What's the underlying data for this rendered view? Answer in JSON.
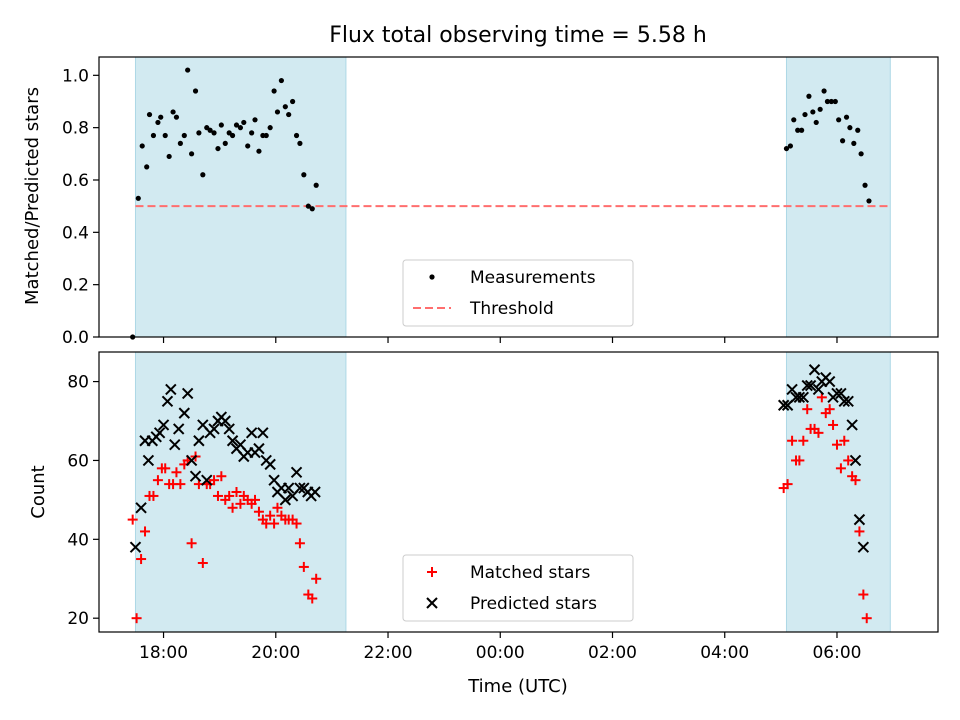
{
  "chart_data": {
    "title": "Flux total observing time = 5.58 h",
    "xlabel": "Time (UTC)",
    "x_unit": "hours since 00:00 UTC (negative = previous evening)",
    "xlim": [
      -7.15,
      7.8
    ],
    "xticks": [
      {
        "v": -6,
        "label": "18:00"
      },
      {
        "v": -4,
        "label": "20:00"
      },
      {
        "v": -2,
        "label": "22:00"
      },
      {
        "v": 0,
        "label": "00:00"
      },
      {
        "v": 2,
        "label": "02:00"
      },
      {
        "v": 4,
        "label": "04:00"
      },
      {
        "v": 6,
        "label": "06:00"
      }
    ],
    "shaded_intervals": [
      [
        -6.5,
        -2.75
      ],
      [
        5.1,
        6.95
      ]
    ],
    "shade_color": "#add8e6",
    "top": {
      "type": "scatter",
      "ylabel": "Matched/Predicted stars",
      "ylim": [
        0.0,
        1.07
      ],
      "yticks": [
        0.0,
        0.2,
        0.4,
        0.6,
        0.8,
        1.0
      ],
      "threshold": {
        "name": "Threshold",
        "value": 0.5,
        "color": "#ff6e6e"
      },
      "legend": [
        "Measurements",
        "Threshold"
      ],
      "legend_position": "bottom-center",
      "series": [
        {
          "name": "Measurements",
          "color": "#000000",
          "points": [
            [
              -6.55,
              0.0
            ],
            [
              -6.45,
              0.53
            ],
            [
              -6.38,
              0.73
            ],
            [
              -6.3,
              0.65
            ],
            [
              -6.25,
              0.85
            ],
            [
              -6.18,
              0.77
            ],
            [
              -6.1,
              0.82
            ],
            [
              -6.05,
              0.84
            ],
            [
              -5.97,
              0.77
            ],
            [
              -5.9,
              0.69
            ],
            [
              -5.83,
              0.86
            ],
            [
              -5.77,
              0.84
            ],
            [
              -5.7,
              0.74
            ],
            [
              -5.63,
              0.77
            ],
            [
              -5.57,
              1.02
            ],
            [
              -5.5,
              0.7
            ],
            [
              -5.43,
              0.94
            ],
            [
              -5.37,
              0.78
            ],
            [
              -5.3,
              0.62
            ],
            [
              -5.23,
              0.8
            ],
            [
              -5.17,
              0.79
            ],
            [
              -5.1,
              0.78
            ],
            [
              -5.03,
              0.72
            ],
            [
              -4.97,
              0.81
            ],
            [
              -4.9,
              0.74
            ],
            [
              -4.83,
              0.78
            ],
            [
              -4.77,
              0.77
            ],
            [
              -4.7,
              0.81
            ],
            [
              -4.63,
              0.8
            ],
            [
              -4.57,
              0.82
            ],
            [
              -4.5,
              0.73
            ],
            [
              -4.43,
              0.78
            ],
            [
              -4.37,
              0.83
            ],
            [
              -4.3,
              0.71
            ],
            [
              -4.23,
              0.77
            ],
            [
              -4.17,
              0.77
            ],
            [
              -4.1,
              0.8
            ],
            [
              -4.03,
              0.94
            ],
            [
              -3.97,
              0.86
            ],
            [
              -3.9,
              0.98
            ],
            [
              -3.83,
              0.88
            ],
            [
              -3.77,
              0.85
            ],
            [
              -3.7,
              0.9
            ],
            [
              -3.63,
              0.77
            ],
            [
              -3.57,
              0.74
            ],
            [
              -3.5,
              0.62
            ],
            [
              -3.42,
              0.5
            ],
            [
              -3.35,
              0.49
            ],
            [
              -3.28,
              0.58
            ],
            [
              5.1,
              0.72
            ],
            [
              5.17,
              0.73
            ],
            [
              5.23,
              0.83
            ],
            [
              5.3,
              0.79
            ],
            [
              5.37,
              0.79
            ],
            [
              5.43,
              0.85
            ],
            [
              5.5,
              0.92
            ],
            [
              5.57,
              0.86
            ],
            [
              5.63,
              0.82
            ],
            [
              5.7,
              0.87
            ],
            [
              5.77,
              0.94
            ],
            [
              5.83,
              0.9
            ],
            [
              5.9,
              0.9
            ],
            [
              5.97,
              0.9
            ],
            [
              6.03,
              0.83
            ],
            [
              6.1,
              0.75
            ],
            [
              6.17,
              0.84
            ],
            [
              6.23,
              0.8
            ],
            [
              6.3,
              0.74
            ],
            [
              6.37,
              0.79
            ],
            [
              6.43,
              0.7
            ],
            [
              6.5,
              0.58
            ],
            [
              6.57,
              0.52
            ]
          ]
        }
      ]
    },
    "bottom": {
      "type": "scatter",
      "ylabel": "Count",
      "ylim": [
        16.5,
        87.5
      ],
      "yticks": [
        20,
        40,
        60,
        80
      ],
      "legend": [
        "Matched stars",
        "Predicted stars"
      ],
      "legend_position": "bottom-center",
      "series": [
        {
          "name": "Matched stars",
          "marker": "plus",
          "color": "#ff0000",
          "points": [
            [
              -6.55,
              45
            ],
            [
              -6.48,
              20
            ],
            [
              -6.4,
              35
            ],
            [
              -6.33,
              42
            ],
            [
              -6.25,
              51
            ],
            [
              -6.18,
              51
            ],
            [
              -6.1,
              55
            ],
            [
              -6.03,
              58
            ],
            [
              -5.97,
              58
            ],
            [
              -5.9,
              54
            ],
            [
              -5.83,
              54
            ],
            [
              -5.77,
              57
            ],
            [
              -5.7,
              54
            ],
            [
              -5.63,
              59
            ],
            [
              -5.57,
              60
            ],
            [
              -5.5,
              39
            ],
            [
              -5.43,
              61
            ],
            [
              -5.37,
              54
            ],
            [
              -5.3,
              34
            ],
            [
              -5.23,
              54
            ],
            [
              -5.17,
              54
            ],
            [
              -5.1,
              55
            ],
            [
              -5.03,
              51
            ],
            [
              -4.97,
              56
            ],
            [
              -4.9,
              50
            ],
            [
              -4.83,
              51
            ],
            [
              -4.77,
              48
            ],
            [
              -4.7,
              52
            ],
            [
              -4.63,
              49
            ],
            [
              -4.57,
              51
            ],
            [
              -4.5,
              50
            ],
            [
              -4.43,
              49
            ],
            [
              -4.37,
              50
            ],
            [
              -4.3,
              47
            ],
            [
              -4.23,
              45
            ],
            [
              -4.17,
              44
            ],
            [
              -4.1,
              46
            ],
            [
              -4.03,
              44
            ],
            [
              -3.97,
              48
            ],
            [
              -3.9,
              46
            ],
            [
              -3.83,
              45
            ],
            [
              -3.77,
              45
            ],
            [
              -3.7,
              45
            ],
            [
              -3.63,
              44
            ],
            [
              -3.57,
              39
            ],
            [
              -3.5,
              33
            ],
            [
              -3.42,
              26
            ],
            [
              -3.35,
              25
            ],
            [
              -3.28,
              30
            ],
            [
              5.05,
              53
            ],
            [
              5.12,
              54
            ],
            [
              5.2,
              65
            ],
            [
              5.27,
              60
            ],
            [
              5.33,
              60
            ],
            [
              5.4,
              65
            ],
            [
              5.47,
              73
            ],
            [
              5.53,
              68
            ],
            [
              5.6,
              68
            ],
            [
              5.67,
              67
            ],
            [
              5.73,
              76
            ],
            [
              5.8,
              72
            ],
            [
              5.87,
              73
            ],
            [
              5.93,
              69
            ],
            [
              6.0,
              64
            ],
            [
              6.07,
              58
            ],
            [
              6.13,
              65
            ],
            [
              6.2,
              60
            ],
            [
              6.27,
              56
            ],
            [
              6.33,
              55
            ],
            [
              6.4,
              42
            ],
            [
              6.47,
              26
            ],
            [
              6.53,
              20
            ]
          ]
        },
        {
          "name": "Predicted stars",
          "marker": "x",
          "color": "#000000",
          "points": [
            [
              -6.5,
              38
            ],
            [
              -6.4,
              48
            ],
            [
              -6.33,
              65
            ],
            [
              -6.27,
              60
            ],
            [
              -6.2,
              65
            ],
            [
              -6.13,
              66
            ],
            [
              -6.07,
              67
            ],
            [
              -6.0,
              69
            ],
            [
              -5.93,
              75
            ],
            [
              -5.87,
              78
            ],
            [
              -5.8,
              64
            ],
            [
              -5.73,
              68
            ],
            [
              -5.63,
              72
            ],
            [
              -5.57,
              77
            ],
            [
              -5.5,
              60
            ],
            [
              -5.43,
              56
            ],
            [
              -5.37,
              65
            ],
            [
              -5.3,
              69
            ],
            [
              -5.23,
              55
            ],
            [
              -5.17,
              67
            ],
            [
              -5.1,
              68
            ],
            [
              -5.03,
              70
            ],
            [
              -4.97,
              71
            ],
            [
              -4.9,
              70
            ],
            [
              -4.83,
              68
            ],
            [
              -4.77,
              65
            ],
            [
              -4.7,
              63
            ],
            [
              -4.63,
              64
            ],
            [
              -4.57,
              61
            ],
            [
              -4.5,
              62
            ],
            [
              -4.43,
              67
            ],
            [
              -4.37,
              62
            ],
            [
              -4.3,
              63
            ],
            [
              -4.23,
              67
            ],
            [
              -4.17,
              60
            ],
            [
              -4.1,
              59
            ],
            [
              -4.03,
              55
            ],
            [
              -3.97,
              52
            ],
            [
              -3.9,
              53
            ],
            [
              -3.83,
              50
            ],
            [
              -3.77,
              53
            ],
            [
              -3.7,
              51
            ],
            [
              -3.63,
              57
            ],
            [
              -3.57,
              53
            ],
            [
              -3.5,
              53
            ],
            [
              -3.43,
              52
            ],
            [
              -3.37,
              51
            ],
            [
              -3.3,
              52
            ],
            [
              5.05,
              74
            ],
            [
              5.12,
              74
            ],
            [
              5.2,
              78
            ],
            [
              5.27,
              76
            ],
            [
              5.33,
              76
            ],
            [
              5.4,
              76
            ],
            [
              5.47,
              79
            ],
            [
              5.53,
              79
            ],
            [
              5.6,
              83
            ],
            [
              5.67,
              78
            ],
            [
              5.73,
              80
            ],
            [
              5.8,
              81
            ],
            [
              5.87,
              80
            ],
            [
              5.93,
              76
            ],
            [
              6.0,
              77
            ],
            [
              6.07,
              77
            ],
            [
              6.13,
              75
            ],
            [
              6.2,
              75
            ],
            [
              6.27,
              69
            ],
            [
              6.33,
              60
            ],
            [
              6.4,
              45
            ],
            [
              6.47,
              38
            ]
          ]
        }
      ]
    }
  }
}
